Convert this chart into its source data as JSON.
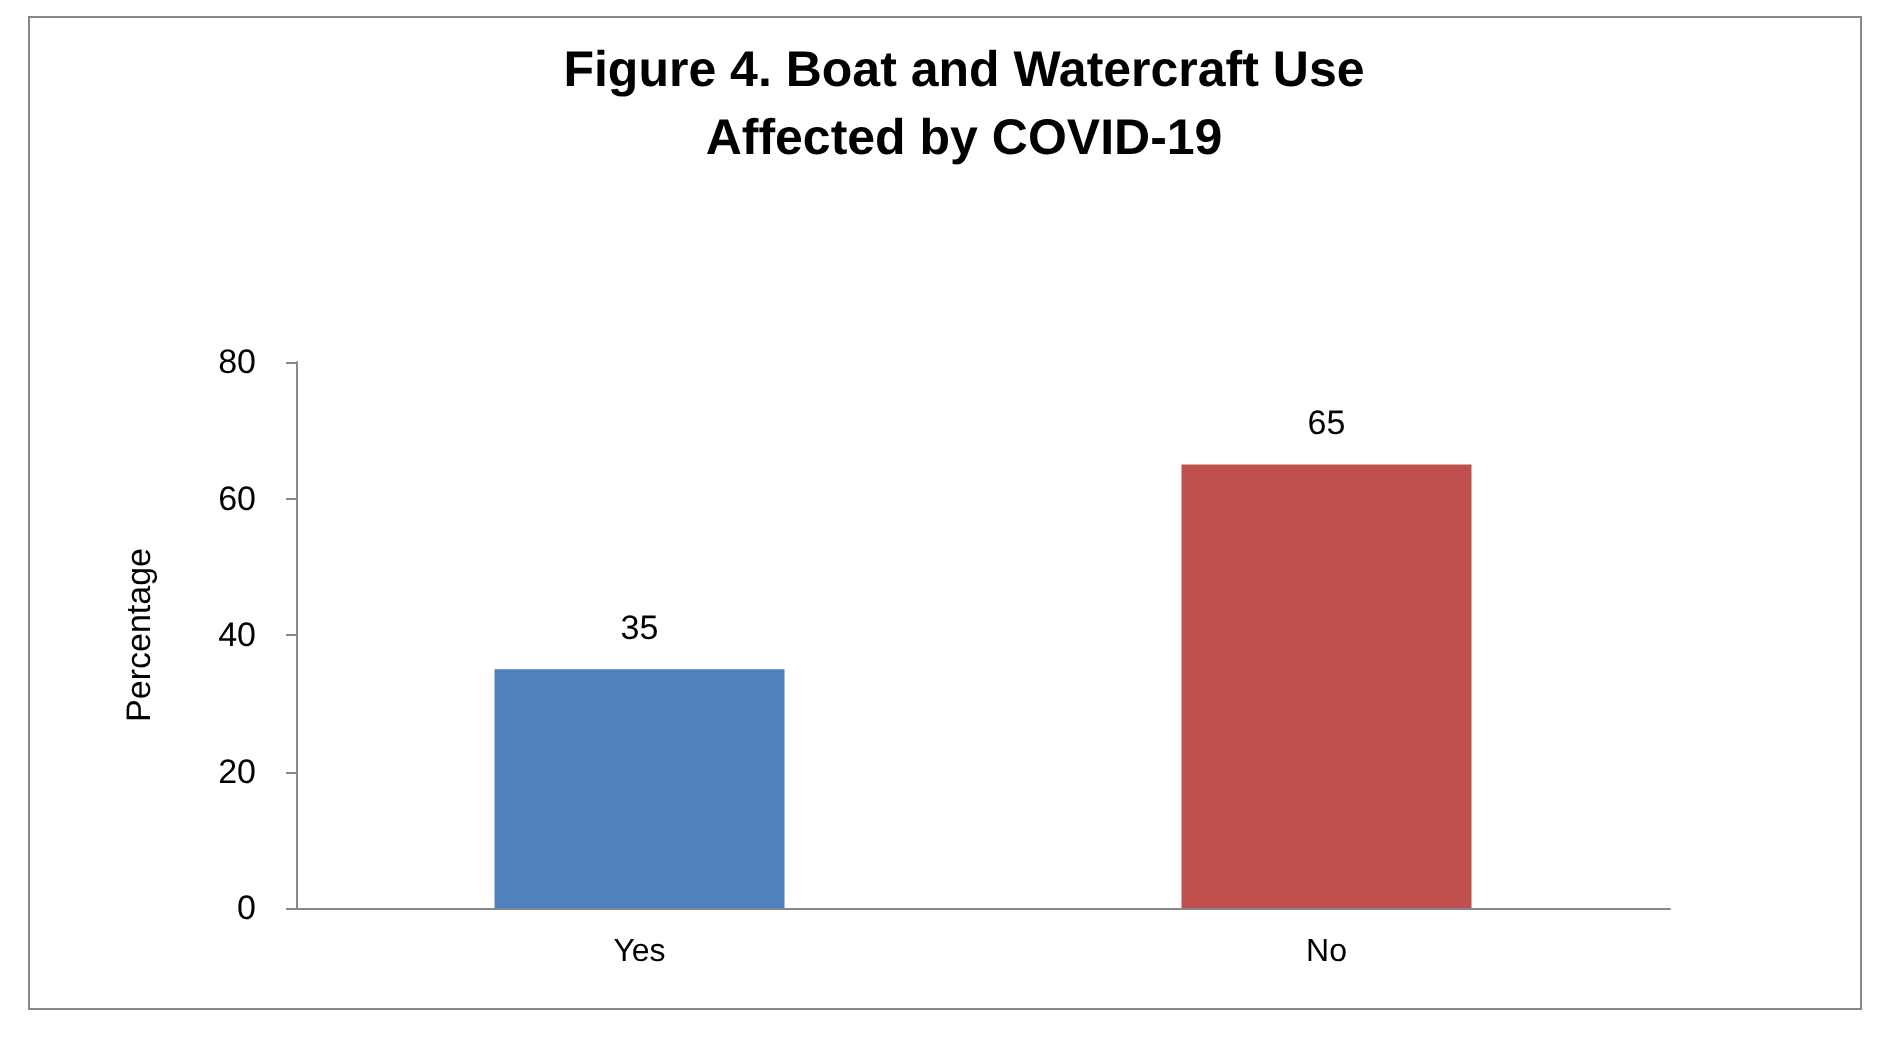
{
  "chart_data": {
    "type": "bar",
    "title": "Figure 4. Boat and Watercraft Use\nAffected by COVID-19",
    "ylabel": "Percentage",
    "categories": [
      "Yes",
      "No"
    ],
    "values": [
      35,
      65
    ],
    "colors": [
      "#4f81bd",
      "#c0504d"
    ],
    "ylim": [
      0,
      80
    ],
    "yticks": [
      0,
      20,
      40,
      60,
      80
    ],
    "grid": false,
    "data_labels": true
  }
}
